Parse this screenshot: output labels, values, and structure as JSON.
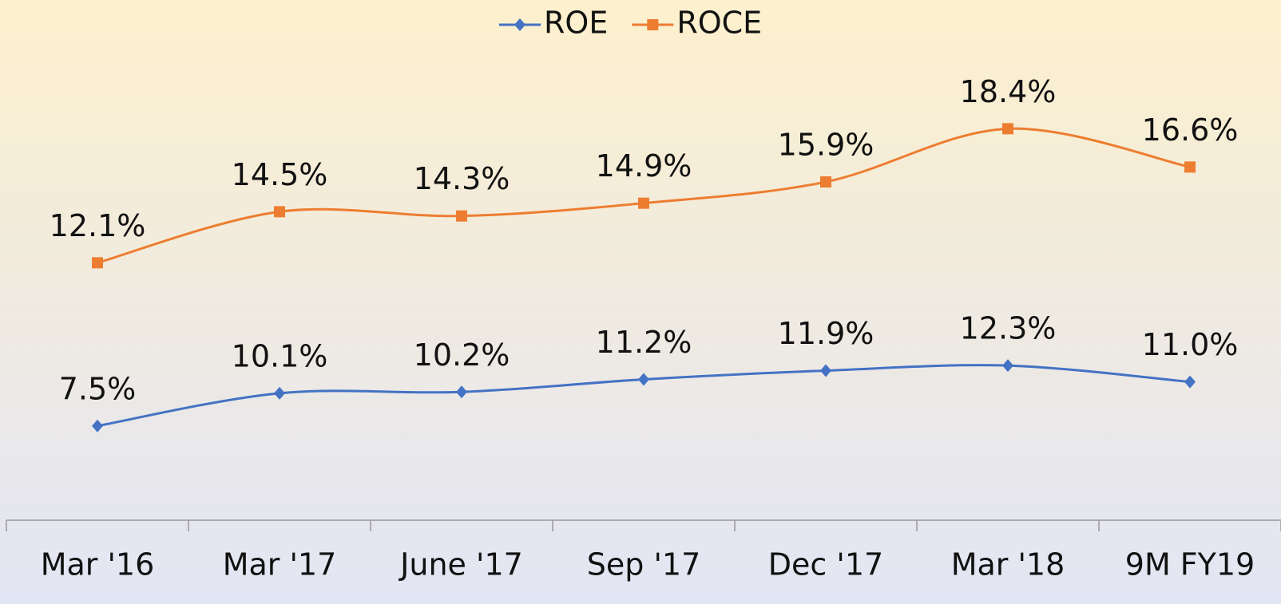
{
  "chart_data": {
    "type": "line",
    "categories": [
      "Mar '16",
      "Mar '17",
      "June '17",
      "Sep '17",
      "Dec '17",
      "Mar '18",
      "9M FY19"
    ],
    "series": [
      {
        "name": "ROE",
        "color": "#4472c4",
        "marker": "diamond",
        "values": [
          7.5,
          10.1,
          10.2,
          11.2,
          11.9,
          12.3,
          11.0
        ],
        "value_labels": [
          "7.5%",
          "10.1%",
          "10.2%",
          "11.2%",
          "11.9%",
          "12.3%",
          "11.0%"
        ]
      },
      {
        "name": "ROCE",
        "color": "#ed7d31",
        "marker": "square",
        "axis": "y2",
        "values": [
          12.1,
          14.5,
          14.3,
          14.9,
          15.9,
          18.4,
          16.6
        ],
        "value_labels": [
          "12.1%",
          "14.5%",
          "14.3%",
          "14.9%",
          "15.9%",
          "18.4%",
          "16.6%"
        ]
      }
    ],
    "ylim": [
      0,
      33
    ],
    "y2lim": [
      0,
      19.5
    ],
    "smooth": true,
    "legend": "top"
  }
}
